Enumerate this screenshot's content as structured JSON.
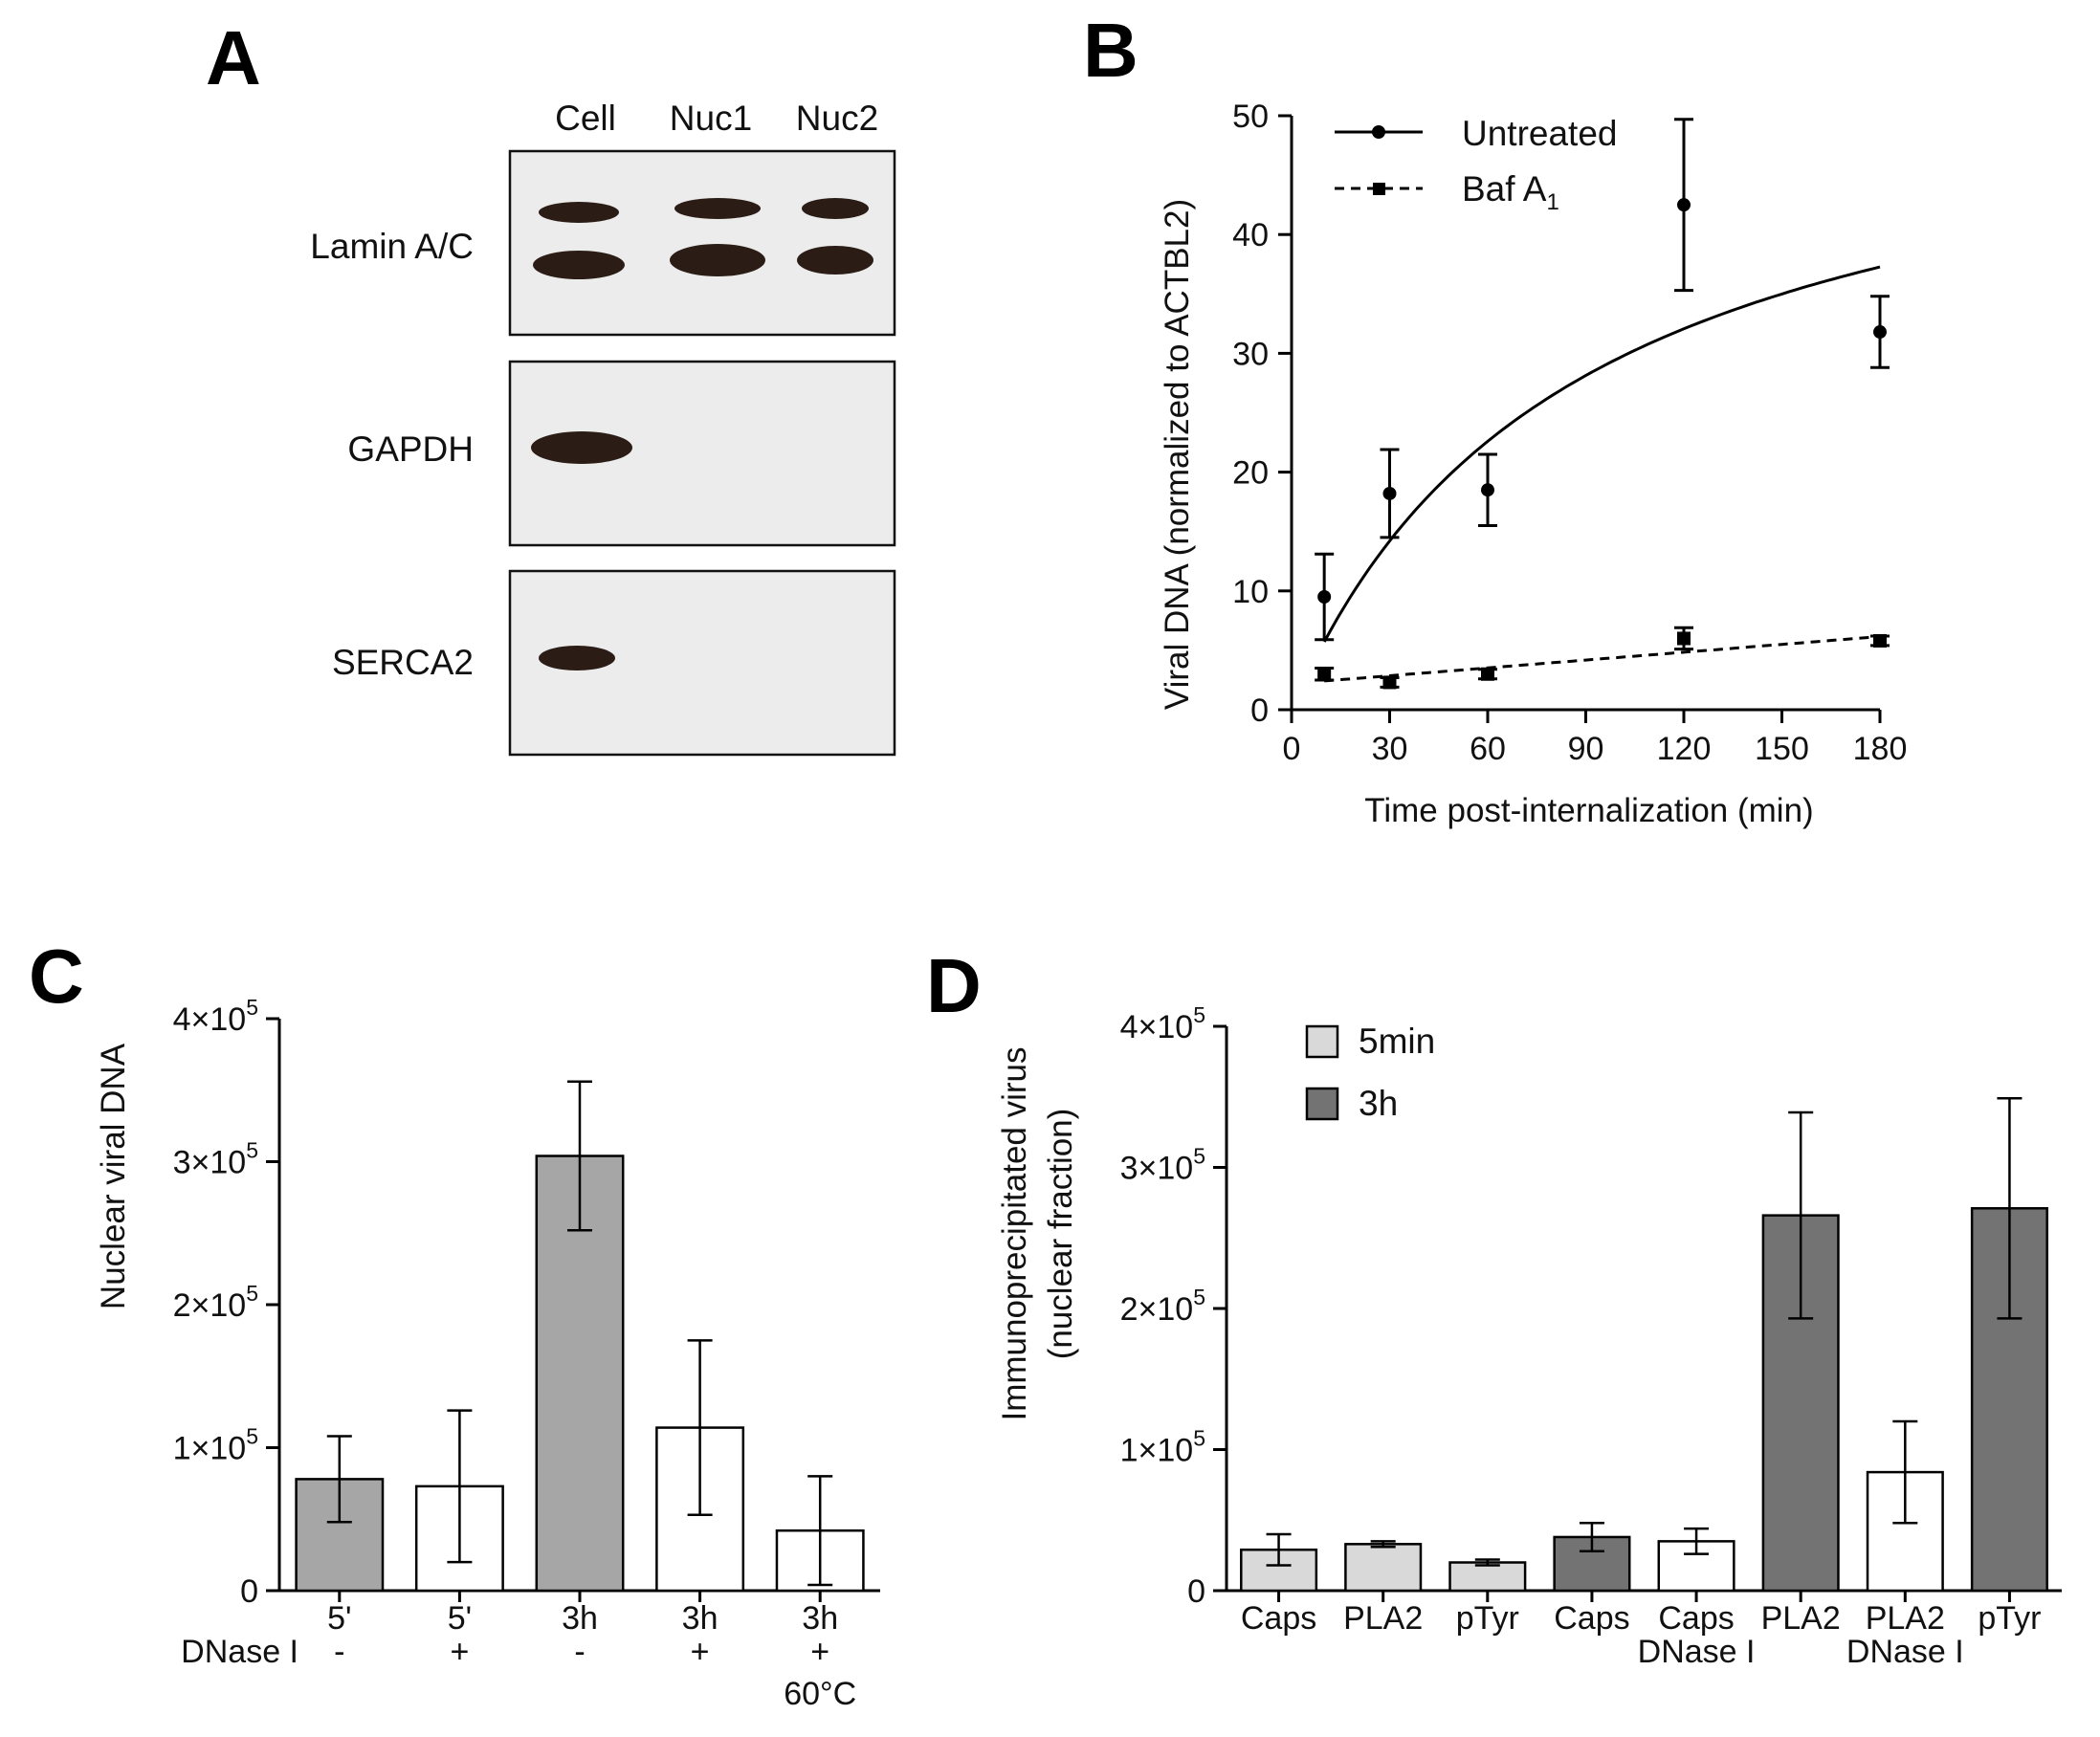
{
  "panels": {
    "a": "A",
    "b": "B",
    "c": "C",
    "d": "D"
  },
  "blot": {
    "lanes": [
      "Cell",
      "Nuc1",
      "Nuc2"
    ],
    "rows": [
      "Lamin A/C",
      "GAPDH",
      "SERCA2"
    ]
  },
  "colors": {
    "bar_light": "#d9d9d9",
    "bar_mid": "#a6a6a6",
    "bar_dark": "#737373",
    "bar_white": "#ffffff",
    "ink": "#000000"
  },
  "chart_data": [
    {
      "id": "B",
      "type": "scatter",
      "ylabel": "Viral DNA (normalized to ACTBL2)",
      "xlabel": "Time post-internalization (min)",
      "xlim": [
        0,
        180
      ],
      "ylim": [
        0,
        50
      ],
      "xticks": [
        0,
        30,
        60,
        90,
        120,
        150,
        180
      ],
      "yticks": [
        0,
        10,
        20,
        30,
        40,
        50
      ],
      "series": [
        {
          "name": "Untreated",
          "marker": "circle",
          "line": "solid",
          "x": [
            10,
            30,
            60,
            120,
            180
          ],
          "y": [
            9.5,
            18.2,
            18.5,
            42.5,
            31.8
          ],
          "err": [
            3.6,
            3.7,
            3.0,
            7.2,
            3.0
          ],
          "fit": {
            "kind": "saturation",
            "vmax": 55.2,
            "k": 86.6
          }
        },
        {
          "name": "Baf A",
          "name_sub": "1",
          "marker": "square",
          "line": "dashed",
          "x": [
            10,
            30,
            60,
            120,
            180
          ],
          "y": [
            3.0,
            2.3,
            3.0,
            6.0,
            5.8
          ],
          "err": [
            0.5,
            0.4,
            0.4,
            0.9,
            0.4
          ],
          "fit": {
            "kind": "linear",
            "a": 2.2,
            "b": 0.022
          }
        }
      ]
    },
    {
      "id": "C",
      "type": "bar",
      "ylabel": "Nuclear viral DNA",
      "ylim": [
        0,
        400000
      ],
      "yticks": [
        0,
        100000,
        200000,
        300000,
        400000
      ],
      "ytick_labels": [
        "0",
        "1×10",
        "2×10",
        "3×10",
        "4×10"
      ],
      "ytick_exp": "5",
      "row_label": "DNase I",
      "categories": [
        "5'",
        "5'",
        "3h",
        "3h",
        "3h"
      ],
      "treatments": [
        "-",
        "+",
        "-",
        "+",
        "+"
      ],
      "extra": [
        "",
        "",
        "",
        "",
        "60°C"
      ],
      "values": [
        78000,
        73000,
        304000,
        114000,
        42000
      ],
      "errors": [
        30000,
        53000,
        52000,
        61000,
        38000
      ],
      "fills": [
        "mid",
        "white",
        "mid",
        "white",
        "white"
      ]
    },
    {
      "id": "D",
      "type": "bar",
      "ylabel_line1": "Immunoprecipitated virus",
      "ylabel_line2": "(nuclear fraction)",
      "ylim": [
        0,
        400000
      ],
      "yticks": [
        0,
        100000,
        200000,
        300000,
        400000
      ],
      "ytick_labels": [
        "0",
        "1×10",
        "2×10",
        "3×10",
        "4×10"
      ],
      "ytick_exp": "5",
      "legend": [
        {
          "name": "5min",
          "fill": "light"
        },
        {
          "name": "3h",
          "fill": "dark"
        }
      ],
      "categories": [
        "Caps",
        "PLA2",
        "pTyr",
        "Caps",
        "Caps",
        "PLA2",
        "PLA2",
        "pTyr"
      ],
      "sublabels": [
        "",
        "",
        "",
        "",
        "DNase I",
        "",
        "DNase I",
        ""
      ],
      "values": [
        29000,
        33000,
        20000,
        38000,
        35000,
        266000,
        84000,
        271000
      ],
      "errors": [
        11000,
        2000,
        2000,
        10000,
        9000,
        73000,
        36000,
        78000
      ],
      "fills": [
        "light",
        "light",
        "light",
        "dark",
        "white",
        "dark",
        "white",
        "dark"
      ]
    }
  ]
}
